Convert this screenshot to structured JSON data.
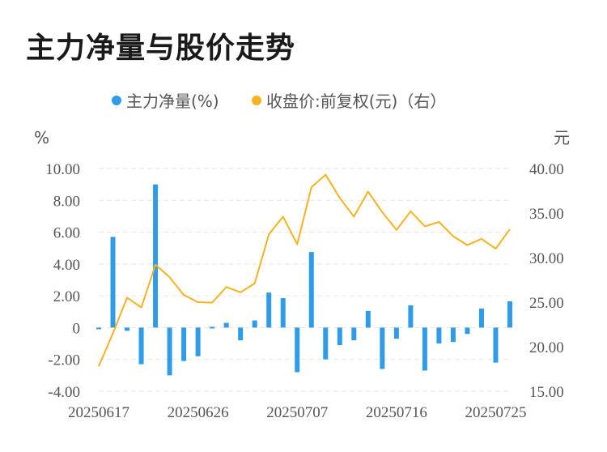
{
  "title": "主力净量与股价走势",
  "colors": {
    "bar": "#2e9ce8",
    "line": "#f5b41f",
    "grid": "#e6e6e6",
    "text": "#555555"
  },
  "chart_data": {
    "type": "bar+line",
    "legend": {
      "placement": "top-center",
      "items": [
        "主力净量(%)",
        "收盘价:前复权(元)（右）"
      ]
    },
    "y_left": {
      "unit": "%",
      "ylim": [
        -4,
        10
      ],
      "ticks": [
        "-4.00",
        "-2.00",
        "0",
        "2.00",
        "4.00",
        "6.00",
        "8.00",
        "10.00"
      ],
      "tick_values": [
        -4,
        -2,
        0,
        2,
        4,
        6,
        8,
        10
      ]
    },
    "y_right": {
      "unit": "元",
      "ylim": [
        15,
        40
      ],
      "ticks": [
        "15.00",
        "20.00",
        "25.00",
        "30.00",
        "35.00",
        "40.00"
      ],
      "tick_values": [
        15,
        20,
        25,
        30,
        35,
        40
      ]
    },
    "x_tick_labels": [
      {
        "index": 0,
        "label": "20250617"
      },
      {
        "index": 7,
        "label": "20250626"
      },
      {
        "index": 14,
        "label": "20250707"
      },
      {
        "index": 21,
        "label": "20250716"
      },
      {
        "index": 28,
        "label": "20250725"
      }
    ],
    "x_count": 30,
    "series": [
      {
        "name": "主力净量(%)",
        "type": "bar",
        "axis": "left",
        "values": [
          -0.1,
          5.7,
          -0.2,
          -2.3,
          9.0,
          -3.0,
          -2.1,
          -1.8,
          0.05,
          0.3,
          -0.8,
          0.45,
          2.2,
          1.85,
          -2.8,
          4.75,
          -2.0,
          -1.1,
          -0.8,
          1.05,
          -2.6,
          -0.7,
          1.4,
          -2.7,
          -1.0,
          -0.9,
          -0.4,
          1.2,
          -2.2,
          1.65
        ]
      },
      {
        "name": "收盘价:前复权(元)（右）",
        "type": "line",
        "axis": "right",
        "values": [
          17.8,
          21.5,
          25.5,
          24.4,
          29.2,
          27.8,
          25.8,
          25.0,
          24.95,
          26.7,
          26.1,
          27.1,
          32.6,
          34.6,
          31.5,
          37.9,
          39.3,
          36.7,
          34.6,
          37.4,
          35.1,
          33.1,
          35.2,
          33.5,
          34.0,
          32.4,
          31.4,
          32.1,
          31.0,
          33.2
        ]
      }
    ]
  }
}
